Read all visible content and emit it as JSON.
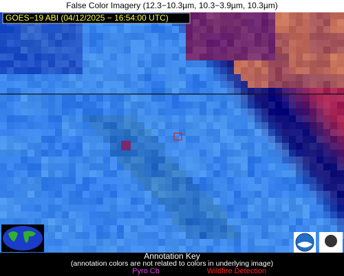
{
  "header": {
    "title": "False Color Imagery (12.3−10.3µm, 10.3−3.9µm, 10.3µm)",
    "label": "GOES−19 ABI (04/12/2025 − 16:54:00 UTC)"
  },
  "footer": {
    "title": "Annotation Key",
    "note": "(annotation colors are not related to colors in underlying image)",
    "keys": [
      "Pyro Cb",
      "Wildfire Detection"
    ]
  }
}
